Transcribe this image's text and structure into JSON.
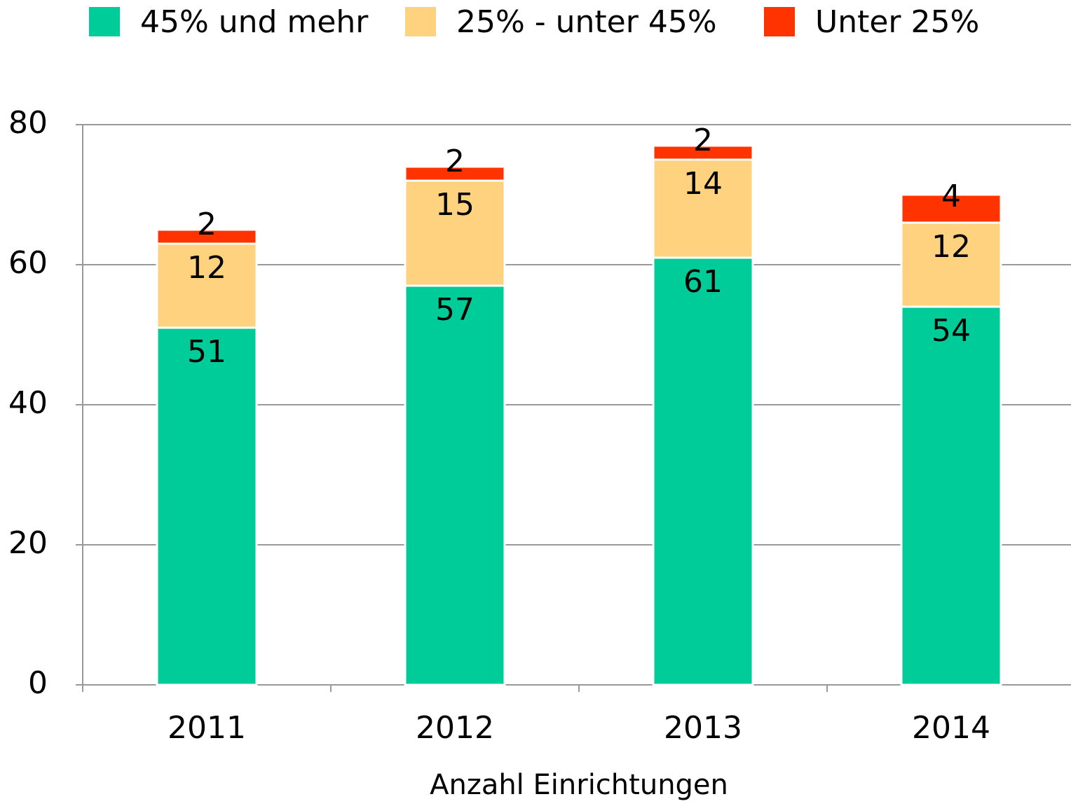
{
  "chart_data": {
    "type": "stacked_bar",
    "x_label": "Anzahl Einrichtungen",
    "categories": [
      "2011",
      "2012",
      "2013",
      "2014"
    ],
    "series": [
      {
        "name": "45% und mehr",
        "color": "#00cc99",
        "values": [
          51,
          57,
          61,
          54
        ]
      },
      {
        "name": "25% - unter 45%",
        "color": "#ffd27f",
        "values": [
          12,
          15,
          14,
          12
        ]
      },
      {
        "name": "Unter 25%",
        "color": "#ff3300",
        "values": [
          2,
          2,
          2,
          4
        ]
      }
    ],
    "ylim": [
      0,
      80
    ],
    "yticks": [
      0,
      20,
      40,
      60,
      80
    ],
    "grid": true,
    "legend": "top"
  }
}
